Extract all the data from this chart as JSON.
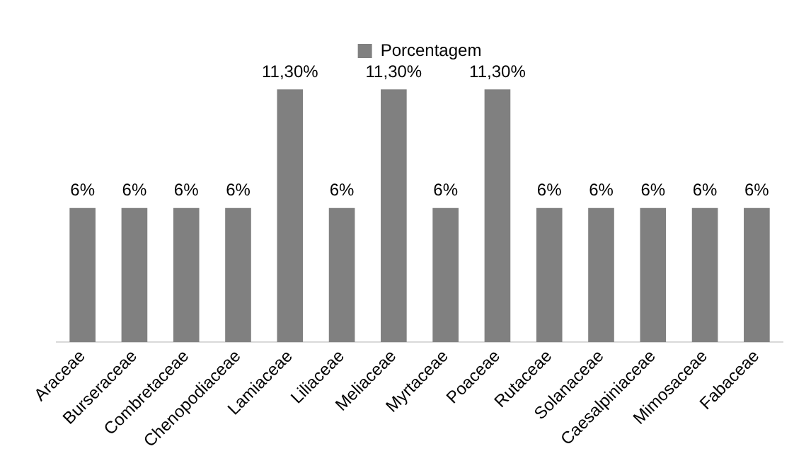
{
  "chart_data": {
    "type": "bar",
    "categories": [
      "Araceae",
      "Burseraceae",
      "Combretaceae",
      "Chenopodiaceae",
      "Lamiaceae",
      "Liliaceae",
      "Meliaceae",
      "Myrtaceae",
      "Poaceae",
      "Rutaceae",
      "Solanaceae",
      "Caesalpiniaceae",
      "Mimosaceae",
      "Fabaceae"
    ],
    "series": [
      {
        "name": "Porcentagem",
        "color": "#808080",
        "values": [
          6,
          6,
          6,
          6,
          11.3,
          6,
          11.3,
          6,
          11.3,
          6,
          6,
          6,
          6,
          6
        ],
        "value_labels": [
          "6%",
          "6%",
          "6%",
          "6%",
          "11,30%",
          "6%",
          "11,30%",
          "6%",
          "11,30%",
          "6%",
          "6%",
          "6%",
          "6%",
          "6%"
        ]
      }
    ],
    "legend": "top",
    "grid": false,
    "tick_labels": "x"
  }
}
